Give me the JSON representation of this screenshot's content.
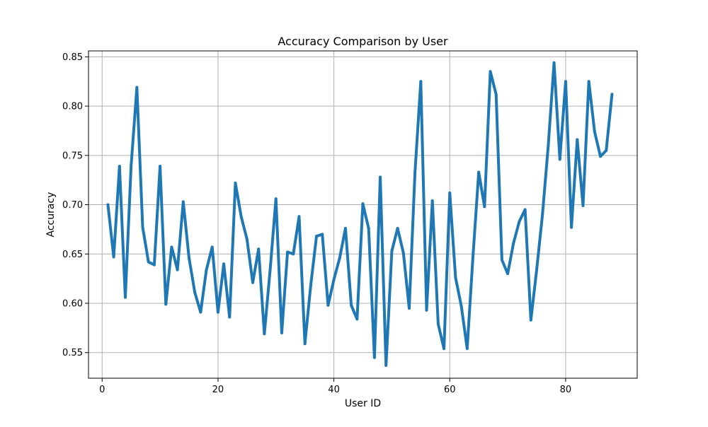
{
  "chart_data": {
    "type": "line",
    "title": "Accuracy Comparison by User",
    "xlabel": "User ID",
    "ylabel": "Accuracy",
    "xlim": [
      -2.35,
      92.35
    ],
    "ylim": [
      0.524,
      0.856
    ],
    "grid": true,
    "legend": "none",
    "x_ticks": [
      0,
      20,
      40,
      60,
      80
    ],
    "y_ticks": [
      0.55,
      0.6,
      0.65,
      0.7,
      0.75,
      0.8,
      0.85
    ],
    "x_tick_labels": [
      "0",
      "20",
      "40",
      "60",
      "80"
    ],
    "y_tick_labels": [
      "0.55",
      "0.60",
      "0.65",
      "0.70",
      "0.75",
      "0.80",
      "0.85"
    ],
    "series": [
      {
        "color": "#1f77b4",
        "x": [
          1,
          2,
          3,
          4,
          5,
          6,
          7,
          8,
          9,
          10,
          11,
          12,
          13,
          14,
          15,
          16,
          17,
          18,
          19,
          20,
          21,
          22,
          23,
          24,
          25,
          26,
          27,
          28,
          29,
          30,
          31,
          32,
          33,
          34,
          35,
          36,
          37,
          38,
          39,
          40,
          41,
          42,
          43,
          44,
          45,
          46,
          47,
          48,
          49,
          50,
          51,
          52,
          53,
          54,
          55,
          56,
          57,
          58,
          59,
          60,
          61,
          62,
          63,
          64,
          65,
          66,
          67,
          68,
          69,
          70,
          71,
          72,
          73,
          74,
          75,
          76,
          77,
          78,
          79,
          80,
          81,
          82,
          83,
          84,
          85,
          86,
          87,
          88
        ],
        "y": [
          0.7,
          0.647,
          0.739,
          0.606,
          0.739,
          0.819,
          0.677,
          0.642,
          0.639,
          0.739,
          0.599,
          0.657,
          0.634,
          0.703,
          0.646,
          0.611,
          0.591,
          0.634,
          0.657,
          0.591,
          0.64,
          0.586,
          0.722,
          0.688,
          0.665,
          0.621,
          0.655,
          0.569,
          0.634,
          0.706,
          0.57,
          0.652,
          0.65,
          0.688,
          0.559,
          0.618,
          0.668,
          0.67,
          0.598,
          0.624,
          0.646,
          0.676,
          0.598,
          0.584,
          0.701,
          0.676,
          0.545,
          0.728,
          0.537,
          0.653,
          0.676,
          0.651,
          0.595,
          0.733,
          0.825,
          0.593,
          0.704,
          0.579,
          0.554,
          0.712,
          0.626,
          0.597,
          0.554,
          0.647,
          0.733,
          0.698,
          0.835,
          0.812,
          0.644,
          0.63,
          0.661,
          0.683,
          0.695,
          0.583,
          0.634,
          0.69,
          0.76,
          0.844,
          0.746,
          0.825,
          0.677,
          0.766,
          0.699,
          0.825,
          0.774,
          0.749,
          0.755,
          0.812
        ]
      }
    ]
  }
}
